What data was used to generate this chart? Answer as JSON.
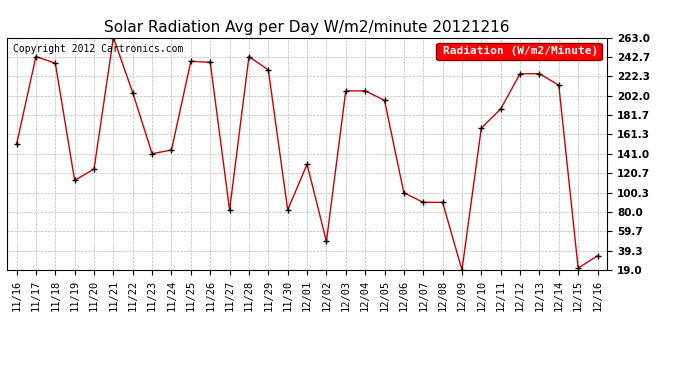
{
  "title": "Solar Radiation Avg per Day W/m2/minute 20121216",
  "copyright": "Copyright 2012 Cartronics.com",
  "legend_label": "Radiation (W/m2/Minute)",
  "background_color": "#ffffff",
  "plot_bg_color": "#ffffff",
  "grid_color": "#bbbbbb",
  "line_color": "#cc0000",
  "marker_color": "#000000",
  "dates": [
    "11/16",
    "11/17",
    "11/18",
    "11/19",
    "11/20",
    "11/21",
    "11/22",
    "11/23",
    "11/24",
    "11/25",
    "11/26",
    "11/27",
    "11/28",
    "11/29",
    "11/30",
    "12/01",
    "12/02",
    "12/03",
    "12/04",
    "12/05",
    "12/06",
    "12/07",
    "12/08",
    "12/09",
    "12/10",
    "12/11",
    "12/12",
    "12/13",
    "12/14",
    "12/15",
    "12/16"
  ],
  "values": [
    151.0,
    243.0,
    236.0,
    113.0,
    125.0,
    263.0,
    205.0,
    141.0,
    145.0,
    238.0,
    237.0,
    82.0,
    243.0,
    229.0,
    82.0,
    130.0,
    49.0,
    207.0,
    207.0,
    197.0,
    100.0,
    90.0,
    90.0,
    19.0,
    168.0,
    188.0,
    225.0,
    225.0,
    213.0,
    21.0,
    34.0
  ],
  "yticks": [
    19.0,
    39.3,
    59.7,
    80.0,
    100.3,
    120.7,
    141.0,
    161.3,
    181.7,
    202.0,
    222.3,
    242.7,
    263.0
  ],
  "ylim": [
    19.0,
    263.0
  ],
  "title_fontsize": 11,
  "tick_fontsize": 7.5,
  "legend_fontsize": 8,
  "copyright_fontsize": 7
}
